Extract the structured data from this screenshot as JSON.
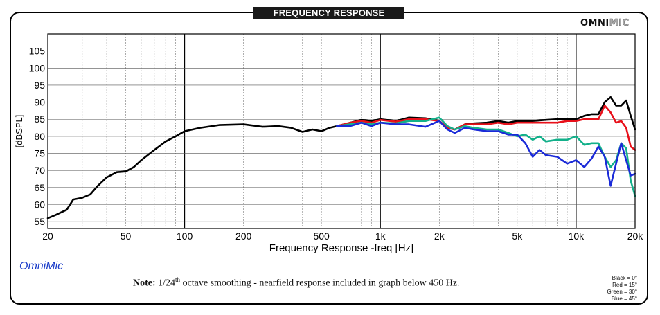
{
  "header": {
    "title": "FREQUENCY RESPONSE",
    "brand_bold": "OMNI",
    "brand_light": "MIC"
  },
  "footer": {
    "app_name": "OmniMic",
    "note_label": "Note:",
    "note_pre": "1/24",
    "note_sup": "th",
    "note_post": " octave smoothing - nearfield response included in graph below 450 Hz.",
    "legend": [
      "Black = 0°",
      "Red = 15°",
      "Green = 30°",
      "Blue = 45°"
    ]
  },
  "chart_data": {
    "type": "line",
    "xlabel": "Frequency Response -freq [Hz]",
    "ylabel": "[dBSPL]",
    "x_scale": "log",
    "xlim": [
      20,
      20000
    ],
    "ylim": [
      53,
      110
    ],
    "grid": true,
    "x_ticks": [
      {
        "value": 20,
        "label": "20"
      },
      {
        "value": 50,
        "label": "50"
      },
      {
        "value": 100,
        "label": "100"
      },
      {
        "value": 200,
        "label": "200"
      },
      {
        "value": 500,
        "label": "500"
      },
      {
        "value": 1000,
        "label": "1k"
      },
      {
        "value": 2000,
        "label": "2k"
      },
      {
        "value": 5000,
        "label": "5k"
      },
      {
        "value": 10000,
        "label": "10k"
      },
      {
        "value": 20000,
        "label": "20k"
      }
    ],
    "y_ticks": [
      55,
      60,
      65,
      70,
      75,
      80,
      85,
      90,
      95,
      100,
      105
    ],
    "series": [
      {
        "name": "Black = 0°",
        "color": "#000000",
        "points": [
          [
            20,
            56
          ],
          [
            22,
            57
          ],
          [
            25,
            58.5
          ],
          [
            27,
            61.5
          ],
          [
            30,
            62
          ],
          [
            33,
            63
          ],
          [
            36,
            65.5
          ],
          [
            40,
            68
          ],
          [
            45,
            69.5
          ],
          [
            50,
            69.7
          ],
          [
            55,
            71
          ],
          [
            60,
            73
          ],
          [
            70,
            76
          ],
          [
            80,
            78.5
          ],
          [
            90,
            80
          ],
          [
            100,
            81.5
          ],
          [
            120,
            82.5
          ],
          [
            150,
            83.3
          ],
          [
            200,
            83.5
          ],
          [
            250,
            82.8
          ],
          [
            300,
            83
          ],
          [
            350,
            82.5
          ],
          [
            400,
            81.3
          ],
          [
            450,
            82
          ],
          [
            500,
            81.5
          ],
          [
            550,
            82.5
          ],
          [
            600,
            83
          ],
          [
            700,
            84
          ],
          [
            800,
            84.8
          ],
          [
            900,
            84.5
          ],
          [
            1000,
            85
          ],
          [
            1200,
            84.5
          ],
          [
            1400,
            85.5
          ],
          [
            1700,
            85.3
          ],
          [
            2000,
            84.5
          ],
          [
            2200,
            82.5
          ],
          [
            2400,
            82
          ],
          [
            2700,
            83.5
          ],
          [
            3000,
            83.8
          ],
          [
            3500,
            84
          ],
          [
            4000,
            84.5
          ],
          [
            4500,
            84
          ],
          [
            5000,
            84.5
          ],
          [
            6000,
            84.5
          ],
          [
            7000,
            84.8
          ],
          [
            8000,
            85
          ],
          [
            9000,
            85
          ],
          [
            10000,
            85
          ],
          [
            11000,
            86
          ],
          [
            12000,
            86.5
          ],
          [
            13000,
            86.5
          ],
          [
            14000,
            90
          ],
          [
            15000,
            91.5
          ],
          [
            16000,
            89
          ],
          [
            17000,
            89
          ],
          [
            18000,
            90.5
          ],
          [
            19000,
            86
          ],
          [
            20000,
            82
          ]
        ]
      },
      {
        "name": "Red = 15°",
        "color": "#e8101a",
        "points": [
          [
            600,
            83
          ],
          [
            700,
            84
          ],
          [
            800,
            84.5
          ],
          [
            900,
            84
          ],
          [
            1000,
            84.8
          ],
          [
            1200,
            84.3
          ],
          [
            1400,
            85
          ],
          [
            1700,
            85
          ],
          [
            2000,
            84.5
          ],
          [
            2200,
            82.5
          ],
          [
            2400,
            82
          ],
          [
            2700,
            83.5
          ],
          [
            3000,
            83.5
          ],
          [
            3500,
            83.5
          ],
          [
            4000,
            84
          ],
          [
            4500,
            83.5
          ],
          [
            5000,
            84
          ],
          [
            6000,
            84
          ],
          [
            7000,
            84
          ],
          [
            8000,
            84
          ],
          [
            9000,
            84.5
          ],
          [
            10000,
            84.5
          ],
          [
            11000,
            85
          ],
          [
            12000,
            85
          ],
          [
            13000,
            85
          ],
          [
            14000,
            89
          ],
          [
            15000,
            87
          ],
          [
            16000,
            84
          ],
          [
            17000,
            84.5
          ],
          [
            18000,
            82.5
          ],
          [
            19000,
            77
          ],
          [
            20000,
            76
          ]
        ]
      },
      {
        "name": "Green = 30°",
        "color": "#12b08a",
        "points": [
          [
            600,
            83
          ],
          [
            700,
            83.5
          ],
          [
            800,
            84
          ],
          [
            900,
            83.5
          ],
          [
            1000,
            84
          ],
          [
            1200,
            83.8
          ],
          [
            1400,
            84.5
          ],
          [
            1700,
            84.5
          ],
          [
            2000,
            85.5
          ],
          [
            2200,
            83
          ],
          [
            2400,
            82
          ],
          [
            2700,
            83
          ],
          [
            3000,
            82.5
          ],
          [
            3500,
            82
          ],
          [
            4000,
            82
          ],
          [
            4500,
            81
          ],
          [
            5000,
            80
          ],
          [
            5500,
            80.5
          ],
          [
            6000,
            79
          ],
          [
            6500,
            80
          ],
          [
            7000,
            78.5
          ],
          [
            8000,
            79
          ],
          [
            9000,
            79
          ],
          [
            10000,
            80
          ],
          [
            11000,
            77.5
          ],
          [
            12000,
            78
          ],
          [
            13000,
            78
          ],
          [
            14000,
            74
          ],
          [
            15000,
            71
          ],
          [
            16000,
            73
          ],
          [
            17000,
            78
          ],
          [
            18000,
            76.5
          ],
          [
            19000,
            67
          ],
          [
            20000,
            62.5
          ]
        ]
      },
      {
        "name": "Blue = 45°",
        "color": "#1a2ad8",
        "points": [
          [
            600,
            83
          ],
          [
            700,
            83
          ],
          [
            800,
            84
          ],
          [
            900,
            83
          ],
          [
            1000,
            84
          ],
          [
            1200,
            83.5
          ],
          [
            1400,
            83.5
          ],
          [
            1700,
            82.8
          ],
          [
            2000,
            84.5
          ],
          [
            2200,
            82
          ],
          [
            2400,
            81
          ],
          [
            2700,
            82.5
          ],
          [
            3000,
            82
          ],
          [
            3500,
            81.5
          ],
          [
            4000,
            81.5
          ],
          [
            4500,
            80.5
          ],
          [
            5000,
            80.5
          ],
          [
            5500,
            78
          ],
          [
            6000,
            74
          ],
          [
            6500,
            76
          ],
          [
            7000,
            74.5
          ],
          [
            8000,
            74
          ],
          [
            9000,
            72
          ],
          [
            10000,
            73
          ],
          [
            11000,
            71
          ],
          [
            12000,
            73.5
          ],
          [
            13000,
            77
          ],
          [
            14000,
            74
          ],
          [
            15000,
            65.5
          ],
          [
            16000,
            72
          ],
          [
            17000,
            78
          ],
          [
            18000,
            73
          ],
          [
            19000,
            68.5
          ],
          [
            20000,
            69
          ]
        ]
      }
    ]
  }
}
